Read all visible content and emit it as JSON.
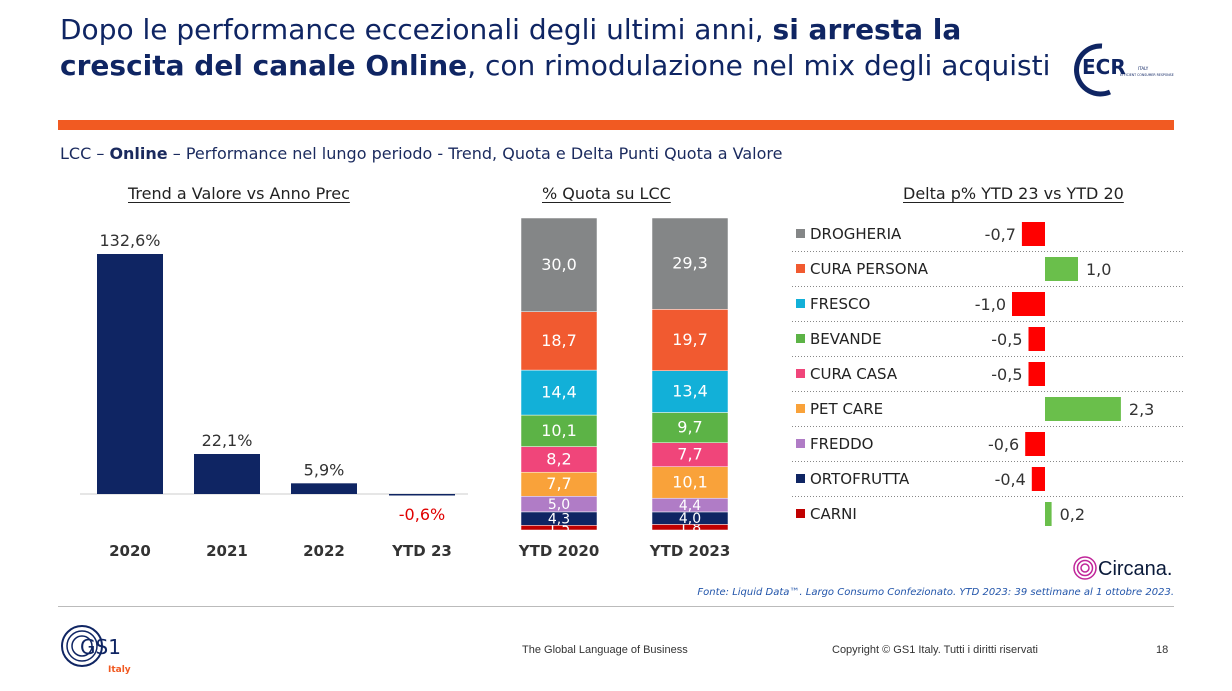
{
  "header": {
    "title_part1": "Dopo le performance eccezionali degli ultimi anni, ",
    "title_bold1": "si arresta la crescita del canale Online",
    "title_part2": ", con rimodulazione nel mix degli acquisti",
    "logo_text": "ECR",
    "logo_sub_1": "ITALY",
    "logo_sub_2": "EFFICIENT CONSUMER RESPONSE",
    "accent_color": "#f15a22"
  },
  "subtitle": {
    "prefix": "LCC – ",
    "bold": "Online",
    "suffix": " – Performance nel lungo periodo - Trend, Quota e Delta Punti Quota a Valore"
  },
  "chart_data": [
    {
      "type": "bar",
      "title": "Trend a Valore vs Anno Prec",
      "categories": [
        "2020",
        "2021",
        "2022",
        "YTD 23"
      ],
      "values": [
        132.6,
        22.1,
        5.9,
        -0.6
      ],
      "labels": [
        "132,6%",
        "22,1%",
        "5,9%",
        "-0,6%"
      ],
      "colors": {
        "bar": "#0f2563",
        "negative_label": "#e00000"
      }
    },
    {
      "type": "bar",
      "stacked": true,
      "title": "% Quota su LCC",
      "categories": [
        "YTD 2020",
        "YTD 2023"
      ],
      "series": [
        {
          "name": "CARNI",
          "color": "#c00000",
          "values": [
            1.5,
            1.8
          ],
          "labels": [
            "1,5",
            "1,8"
          ]
        },
        {
          "name": "ORTOFRUTTA",
          "color": "#0f2563",
          "values": [
            4.3,
            4.0
          ],
          "labels": [
            "4,3",
            "4,0"
          ]
        },
        {
          "name": "FREDDO",
          "color": "#b07cc6",
          "values": [
            5.0,
            4.4
          ],
          "labels": [
            "5,0",
            "4,4"
          ]
        },
        {
          "name": "PET CARE",
          "color": "#f9a23a",
          "values": [
            7.7,
            10.1
          ],
          "labels": [
            "7,7",
            "10,1"
          ]
        },
        {
          "name": "CURA CASA",
          "color": "#f0457a",
          "values": [
            8.2,
            7.7
          ],
          "labels": [
            "8,2",
            "7,7"
          ]
        },
        {
          "name": "BEVANDE",
          "color": "#5cb346",
          "values": [
            10.1,
            9.7
          ],
          "labels": [
            "10,1",
            "9,7"
          ]
        },
        {
          "name": "FRESCO",
          "color": "#12b0d8",
          "values": [
            14.4,
            13.4
          ],
          "labels": [
            "14,4",
            "13,4"
          ]
        },
        {
          "name": "CURA PERSONA",
          "color": "#f15a30",
          "values": [
            18.7,
            19.7
          ],
          "labels": [
            "18,7",
            "19,7"
          ]
        },
        {
          "name": "DROGHERIA",
          "color": "#848687",
          "values": [
            30.0,
            29.3
          ],
          "labels": [
            "30,0",
            "29,3"
          ]
        }
      ]
    },
    {
      "type": "bar",
      "orientation": "horizontal",
      "title": "Delta p% YTD 23 vs YTD 20",
      "categories": [
        "DROGHERIA",
        "CURA PERSONA",
        "FRESCO",
        "BEVANDE",
        "CURA CASA",
        "PET CARE",
        "FREDDO",
        "ORTOFRUTTA",
        "CARNI"
      ],
      "category_colors": [
        "#848687",
        "#f15a30",
        "#12b0d8",
        "#5cb346",
        "#f0457a",
        "#f9a23a",
        "#b07cc6",
        "#0f2563",
        "#c00000"
      ],
      "values": [
        -0.7,
        1.0,
        -1.0,
        -0.5,
        -0.5,
        2.3,
        -0.6,
        -0.4,
        0.2
      ],
      "labels": [
        "-0,7",
        "1,0",
        "-1,0",
        "-0,5",
        "-0,5",
        "2,3",
        "-0,6",
        "-0,4",
        "0,2"
      ],
      "colors": {
        "positive": "#6abf4b",
        "negative": "#ff0000"
      }
    }
  ],
  "footer": {
    "source": "Fonte: Liquid Data™. Largo Consumo Confezionato. YTD 2023: 39 settimane al 1 ottobre 2023.",
    "brand": "Circana.",
    "tagline": "The Global Language of Business",
    "copyright": "Copyright © GS1 Italy. Tutti i diritti riservati",
    "page": "18",
    "gs1_text": "GS1",
    "gs1_sub": "Italy"
  }
}
